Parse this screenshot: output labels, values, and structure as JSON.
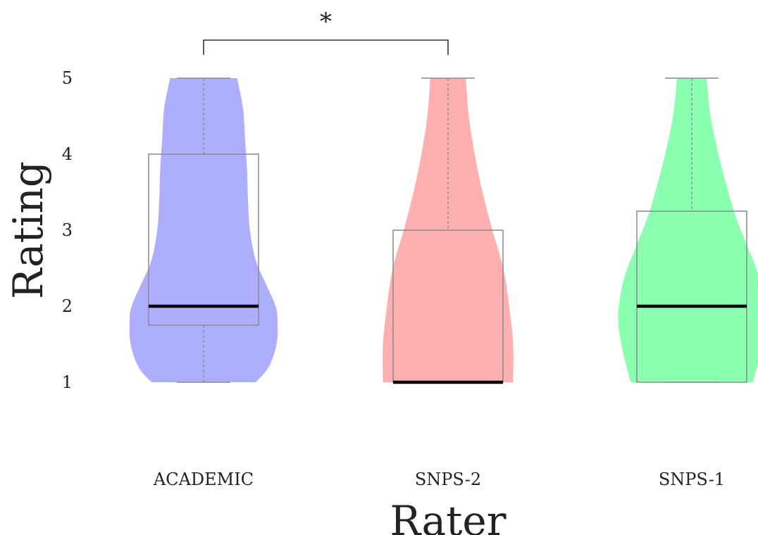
{
  "chart_data": {
    "type": "violin",
    "xlabel": "Rater",
    "ylabel": "Rating",
    "ylim": [
      1,
      5
    ],
    "yticks": [
      "1",
      "2",
      "3",
      "4",
      "5"
    ],
    "categories": [
      "ACADEMIC",
      "SNPS-2",
      "SNPS-1"
    ],
    "series": [
      {
        "category": "ACADEMIC",
        "color": "#aeaefe",
        "min": 1,
        "q1": 1.75,
        "median": 2,
        "q3": 4,
        "max": 5,
        "density": [
          [
            1.0,
            0.53
          ],
          [
            1.2,
            0.66
          ],
          [
            1.5,
            0.74
          ],
          [
            1.8,
            0.75
          ],
          [
            2.0,
            0.73
          ],
          [
            2.3,
            0.63
          ],
          [
            2.6,
            0.53
          ],
          [
            3.0,
            0.47
          ],
          [
            3.4,
            0.45
          ],
          [
            3.8,
            0.44
          ],
          [
            4.2,
            0.42
          ],
          [
            4.6,
            0.4
          ],
          [
            5.0,
            0.34
          ]
        ]
      },
      {
        "category": "SNPS-2",
        "color": "#feb0b0",
        "min": 1,
        "q1": 1,
        "median": 1,
        "q3": 3,
        "max": 5,
        "density": [
          [
            1.0,
            0.66
          ],
          [
            1.5,
            0.66
          ],
          [
            2.0,
            0.62
          ],
          [
            2.5,
            0.56
          ],
          [
            3.0,
            0.45
          ],
          [
            3.5,
            0.35
          ],
          [
            4.0,
            0.27
          ],
          [
            4.5,
            0.21
          ],
          [
            5.0,
            0.18
          ]
        ]
      },
      {
        "category": "SNPS-1",
        "color": "#8affb0",
        "min": 1,
        "q1": 1,
        "median": 2,
        "q3": 3.25,
        "max": 5,
        "density": [
          [
            1.0,
            0.62
          ],
          [
            1.3,
            0.68
          ],
          [
            1.7,
            0.74
          ],
          [
            2.0,
            0.74
          ],
          [
            2.4,
            0.68
          ],
          [
            2.8,
            0.56
          ],
          [
            3.2,
            0.44
          ],
          [
            3.6,
            0.35
          ],
          [
            4.0,
            0.27
          ],
          [
            4.5,
            0.19
          ],
          [
            5.0,
            0.15
          ]
        ]
      }
    ],
    "significance": [
      {
        "from": "ACADEMIC",
        "to": "SNPS-2",
        "label": "*"
      }
    ]
  }
}
